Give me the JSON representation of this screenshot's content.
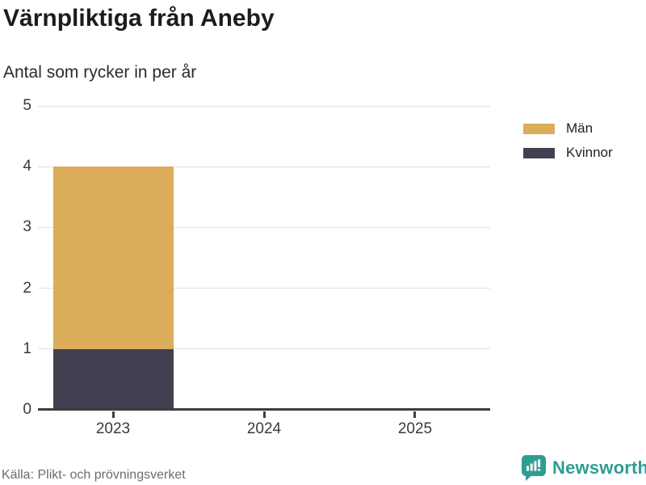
{
  "header": {
    "title": "Värnpliktiga från Aneby",
    "subtitle": "Antal som rycker in per år"
  },
  "chart_data": {
    "type": "bar",
    "stacked": true,
    "title": "Värnpliktiga från Aneby",
    "subtitle": "Antal som rycker in per år",
    "categories": [
      "2023",
      "2024",
      "2025"
    ],
    "series": [
      {
        "name": "Män",
        "color": "#dbac5a",
        "values": [
          3,
          0,
          0
        ]
      },
      {
        "name": "Kvinnor",
        "color": "#424050",
        "values": [
          1,
          0,
          0
        ]
      }
    ],
    "stack_order_bottom_up": [
      "Kvinnor",
      "Män"
    ],
    "stacked_totals": [
      4,
      0,
      0
    ],
    "xlabel": "",
    "ylabel": "",
    "ylim": [
      0,
      5
    ],
    "yticks": [
      0,
      1,
      2,
      3,
      4,
      5
    ],
    "grid": true,
    "legend_position": "top-right"
  },
  "legend": {
    "entries": [
      "Män",
      "Kvinnor"
    ]
  },
  "footer": {
    "source": "Källa: Plikt- och prövningsverket",
    "brand": "Newsworthy"
  },
  "icons": {
    "brand_logo": "bar-chart-speech-bubble-icon"
  },
  "colors": {
    "men": "#dbac5a",
    "women": "#424050",
    "grid": "#e2e2e2",
    "axis": "#3d3d3d",
    "brand_teal": "#2f9d92",
    "title_text": "#1c1c1a",
    "muted_text": "#6b6b73"
  }
}
